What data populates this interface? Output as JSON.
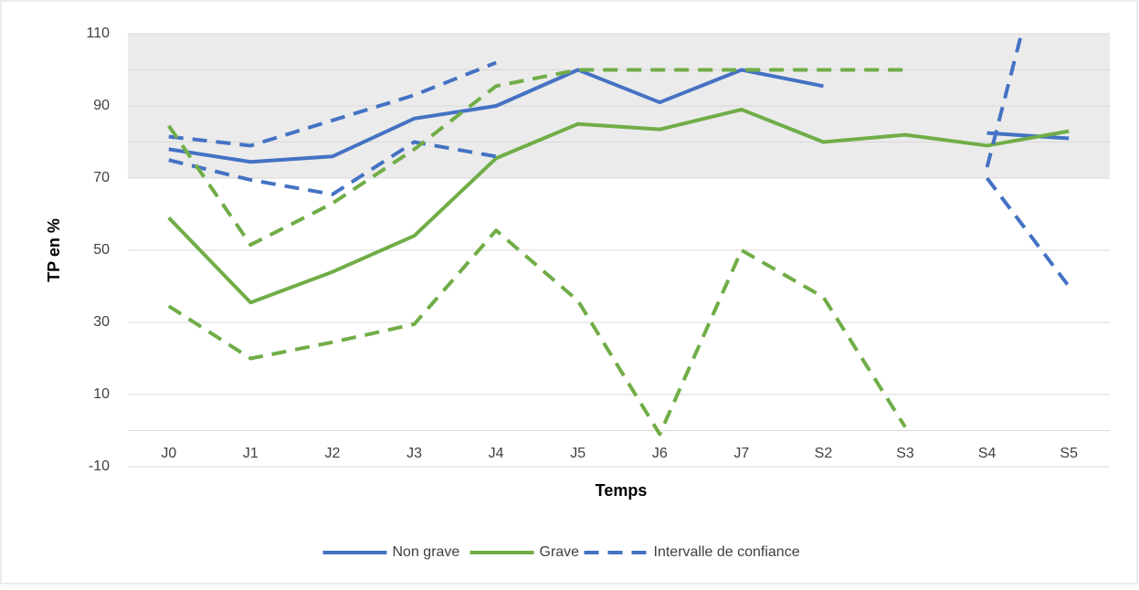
{
  "chart_data": {
    "type": "line",
    "x_label": "Temps",
    "y_label": "TP en %",
    "categories": [
      "J0",
      "J1",
      "J2",
      "J3",
      "J4",
      "J5",
      "J6",
      "J7",
      "S2",
      "S3",
      "S4",
      "S5"
    ],
    "ylim": [
      -10,
      110
    ],
    "yticks": [
      -10,
      10,
      30,
      50,
      70,
      90,
      110
    ],
    "extra_grid": [
      0,
      80,
      100
    ],
    "shaded_band": [
      70,
      110
    ],
    "shaded_color": "#ebebeb",
    "grid": true,
    "legend": "bottom",
    "series": [
      {
        "name": "Non grave",
        "color": "#4472c4",
        "dashed": false,
        "values": [
          78,
          74.5,
          76,
          86.5,
          90,
          100,
          91,
          100,
          95.5,
          null,
          82.5,
          81
        ]
      },
      {
        "name": "Grave",
        "color": "#70ad47",
        "dashed": false,
        "values": [
          59,
          35.5,
          44,
          54,
          75.5,
          85,
          83.5,
          89,
          80,
          82,
          79,
          83
        ]
      },
      {
        "name": "Intervalle de confiance",
        "color": "#4472c4",
        "dashed": true,
        "values": [
          81.5,
          79,
          86,
          93,
          102,
          null,
          null,
          null,
          null,
          null,
          73,
          161
        ]
      },
      {
        "color": "#4472c4",
        "dashed": true,
        "values": [
          75,
          69.5,
          65.5,
          80,
          76,
          null,
          null,
          null,
          null,
          null,
          70,
          40
        ]
      },
      {
        "color": "#70ad47",
        "dashed": true,
        "values": [
          84.5,
          51.5,
          63,
          78,
          95.5,
          100,
          100,
          100,
          100,
          100,
          null,
          null
        ]
      },
      {
        "color": "#70ad47",
        "dashed": true,
        "values": [
          34.5,
          20,
          24.5,
          29.5,
          55.5,
          36,
          -1,
          50,
          37,
          1,
          null,
          null
        ]
      }
    ]
  }
}
